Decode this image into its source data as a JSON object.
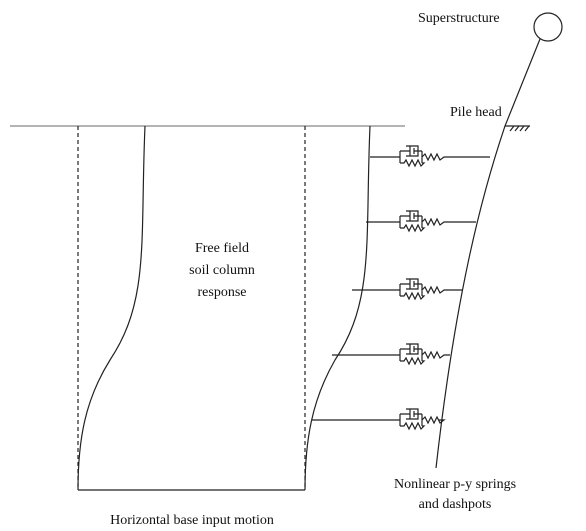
{
  "labels": {
    "superstructure": "Superstructure",
    "pile_head": "Pile head",
    "soil_column": [
      "Free field",
      "soil column",
      "response"
    ],
    "springs": [
      "Nonlinear p-y springs",
      "and dashpots"
    ],
    "base_motion": "Horizontal base input motion"
  }
}
